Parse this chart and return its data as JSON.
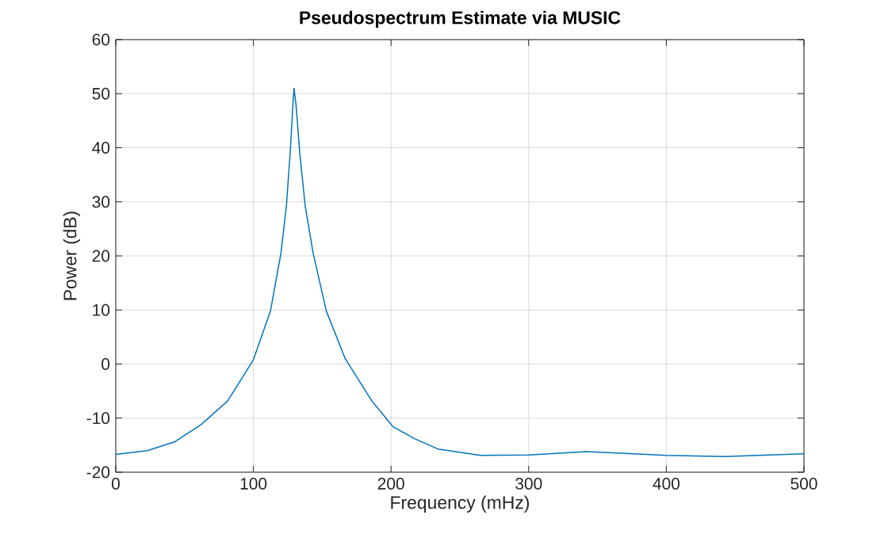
{
  "chart_data": {
    "type": "line",
    "title": "Pseudospectrum Estimate via MUSIC",
    "xlabel": "Frequency (mHz)",
    "ylabel": "Power (dB)",
    "xlim": [
      0,
      500
    ],
    "ylim": [
      -20,
      60
    ],
    "xticks": [
      0,
      100,
      200,
      300,
      400,
      500
    ],
    "yticks": [
      -20,
      -10,
      0,
      10,
      20,
      30,
      40,
      50,
      60
    ],
    "grid": true,
    "series": [
      {
        "color": "#0072bd",
        "x": [
          0,
          23,
          42.6,
          62,
          81.4,
          100,
          112.4,
          120,
          124,
          126.7,
          128.7,
          129.5,
          131,
          133.7,
          137.6,
          143.4,
          153,
          166.7,
          186,
          201.5,
          217,
          234,
          265,
          300,
          342,
          400,
          442,
          500
        ],
        "values": [
          -16.7,
          -16.0,
          -14.4,
          -11.2,
          -6.8,
          0.8,
          9.8,
          20.5,
          29.3,
          39,
          47.9,
          51,
          47.9,
          39,
          29.3,
          20.5,
          9.8,
          1,
          -6.8,
          -11.6,
          -13.8,
          -15.7,
          -16.9,
          -16.8,
          -16.2,
          -16.9,
          -17.1,
          -16.6
        ]
      }
    ]
  }
}
